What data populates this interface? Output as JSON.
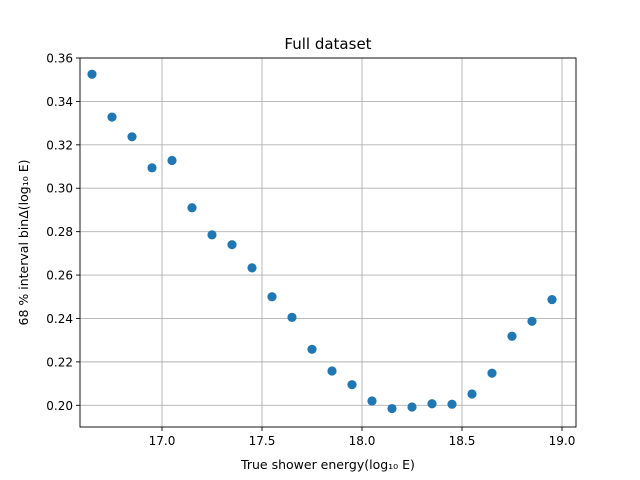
{
  "chart_data": {
    "type": "scatter",
    "title": "Full dataset",
    "xlabel": "True shower energy(log₁₀ E)",
    "ylabel": "68 % interval binΔ(log₁₀ E)",
    "xlim": [
      16.59,
      19.07
    ],
    "ylim": [
      0.19,
      0.36
    ],
    "xticks": [
      17.0,
      17.5,
      18.0,
      18.5,
      19.0
    ],
    "xtick_labels": [
      "17.0",
      "17.5",
      "18.0",
      "18.5",
      "19.0"
    ],
    "yticks": [
      0.2,
      0.22,
      0.24,
      0.26,
      0.28,
      0.3,
      0.32,
      0.34,
      0.36
    ],
    "ytick_labels": [
      "0.20",
      "0.22",
      "0.24",
      "0.26",
      "0.28",
      "0.30",
      "0.32",
      "0.34",
      "0.36"
    ],
    "grid": true,
    "color": "#1f77b4",
    "x": [
      16.65,
      16.75,
      16.85,
      16.95,
      17.05,
      17.15,
      17.25,
      17.35,
      17.45,
      17.55,
      17.65,
      17.75,
      17.85,
      17.95,
      18.05,
      18.15,
      18.25,
      18.35,
      18.45,
      18.55,
      18.65,
      18.75,
      18.85,
      18.95
    ],
    "y": [
      0.3525,
      0.3328,
      0.3237,
      0.3094,
      0.3128,
      0.291,
      0.2785,
      0.274,
      0.2633,
      0.25,
      0.2405,
      0.2258,
      0.2158,
      0.2095,
      0.202,
      0.1985,
      0.1992,
      0.2007,
      0.2005,
      0.2052,
      0.2148,
      0.2318,
      0.2387,
      0.2487
    ]
  }
}
